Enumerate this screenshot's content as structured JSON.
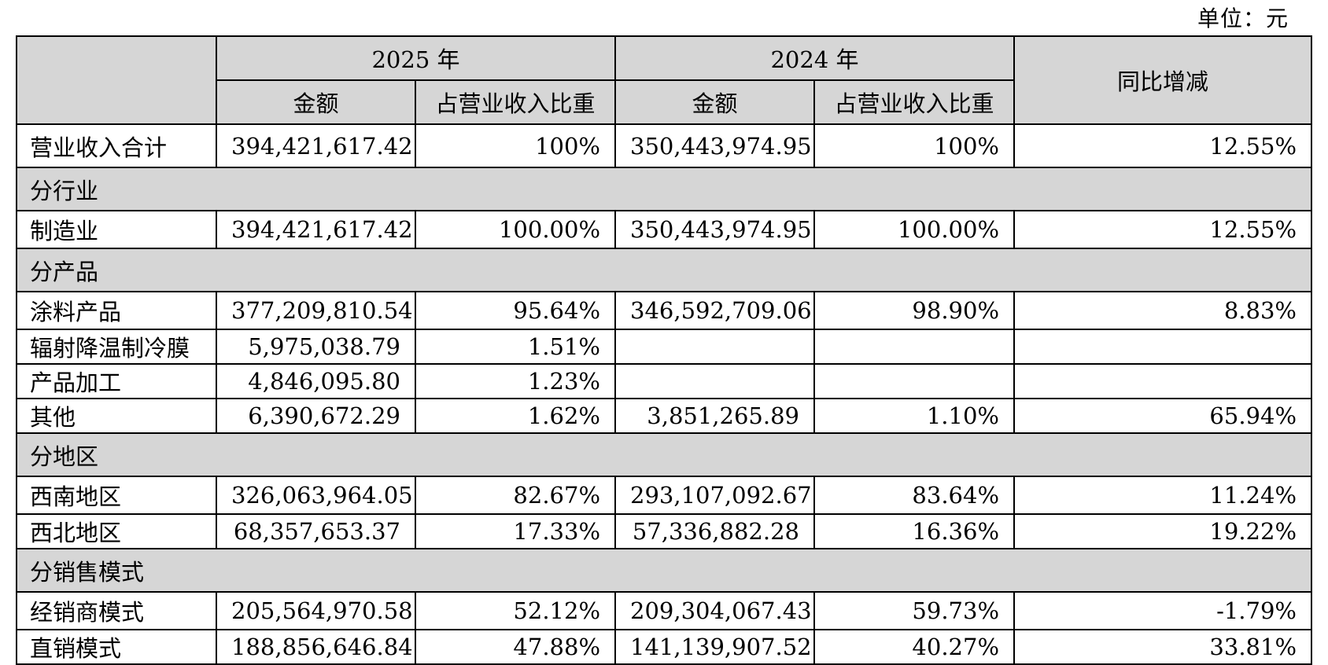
{
  "unit_label": "单位：元",
  "header": {
    "year_2025": "2025 年",
    "year_2024": "2024 年",
    "amount": "金额",
    "share": "占营业收入比重",
    "yoy": "同比增减"
  },
  "total_row": {
    "label": "营业收入合计",
    "amount_2025": "394,421,617.42",
    "share_2025": "100%",
    "amount_2024": "350,443,974.95",
    "share_2024": "100%",
    "yoy": "12.55%"
  },
  "sections": [
    {
      "title": "分行业",
      "rows": [
        {
          "label": "制造业",
          "amount_2025": "394,421,617.42",
          "share_2025": "100.00%",
          "amount_2024": "350,443,974.95",
          "share_2024": "100.00%",
          "yoy": "12.55%"
        }
      ]
    },
    {
      "title": "分产品",
      "rows": [
        {
          "label": "涂料产品",
          "amount_2025": "377,209,810.54",
          "share_2025": "95.64%",
          "amount_2024": "346,592,709.06",
          "share_2024": "98.90%",
          "yoy": "8.83%"
        },
        {
          "label": "辐射降温制冷膜",
          "amount_2025": "5,975,038.79",
          "share_2025": "1.51%",
          "amount_2024": "",
          "share_2024": "",
          "yoy": ""
        },
        {
          "label": "产品加工",
          "amount_2025": "4,846,095.80",
          "share_2025": "1.23%",
          "amount_2024": "",
          "share_2024": "",
          "yoy": ""
        },
        {
          "label": "其他",
          "amount_2025": "6,390,672.29",
          "share_2025": "1.62%",
          "amount_2024": "3,851,265.89",
          "share_2024": "1.10%",
          "yoy": "65.94%"
        }
      ]
    },
    {
      "title": "分地区",
      "rows": [
        {
          "label": "西南地区",
          "amount_2025": "326,063,964.05",
          "share_2025": "82.67%",
          "amount_2024": "293,107,092.67",
          "share_2024": "83.64%",
          "yoy": "11.24%"
        },
        {
          "label": "西北地区",
          "amount_2025": "68,357,653.37",
          "share_2025": "17.33%",
          "amount_2024": "57,336,882.28",
          "share_2024": "16.36%",
          "yoy": "19.22%"
        }
      ]
    },
    {
      "title": "分销售模式",
      "rows": [
        {
          "label": "经销商模式",
          "amount_2025": "205,564,970.58",
          "share_2025": "52.12%",
          "amount_2024": "209,304,067.43",
          "share_2024": "59.73%",
          "yoy": "-1.79%"
        },
        {
          "label": "直销模式",
          "amount_2025": "188,856,646.84",
          "share_2025": "47.88%",
          "amount_2024": "141,139,907.52",
          "share_2024": "40.27%",
          "yoy": "33.81%"
        }
      ]
    }
  ]
}
